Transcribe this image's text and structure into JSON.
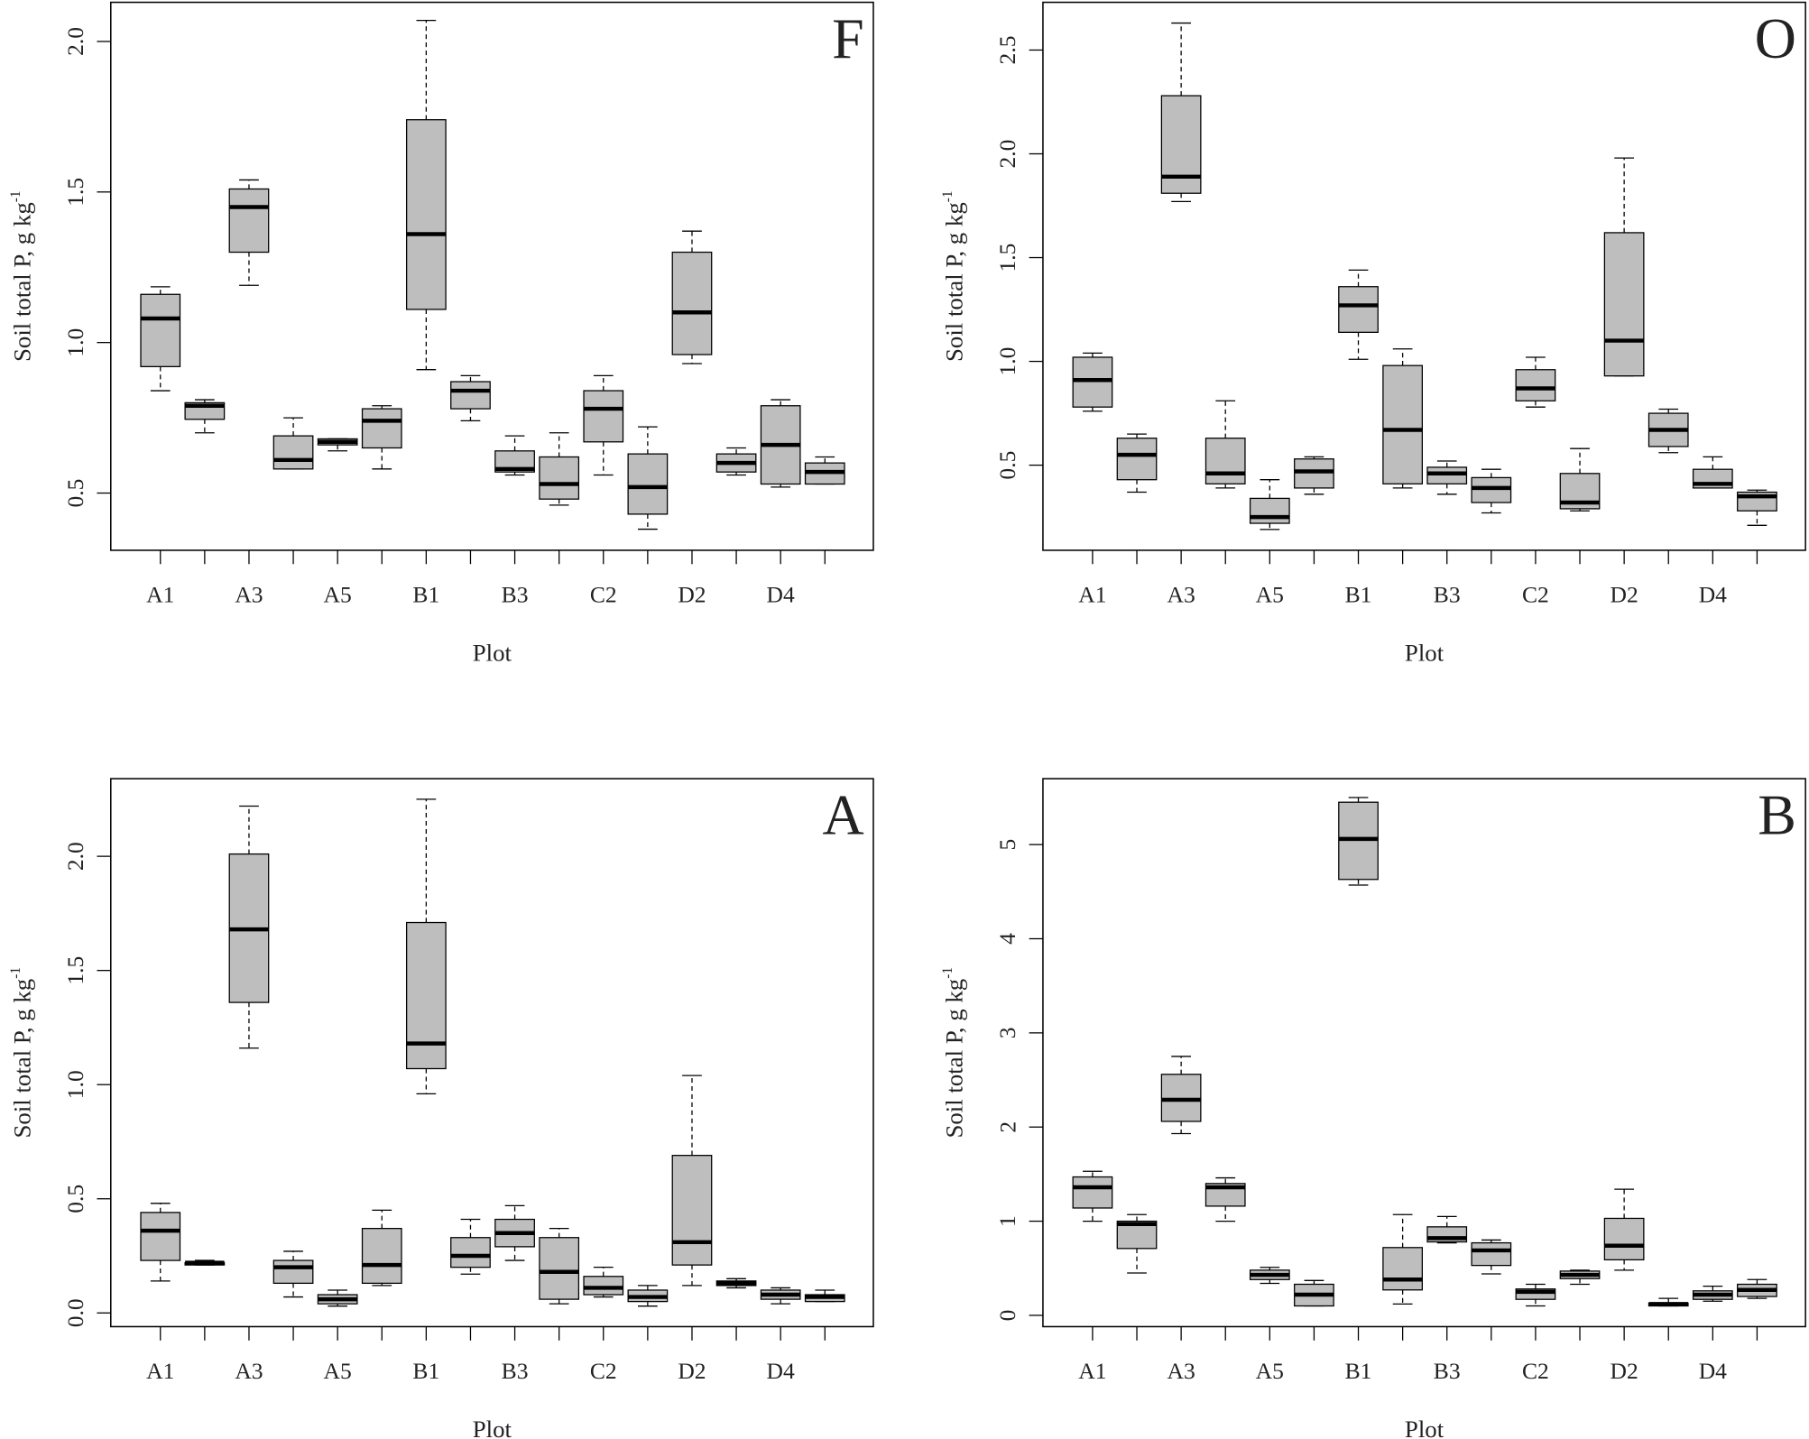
{
  "chart_data": [
    {
      "type": "boxplot",
      "panel_label": "F",
      "xlabel": "Plot",
      "ylabel": "Soil total P, g kg",
      "ylabel_superscript": "-1",
      "color": "#bebebe",
      "categories": [
        "A1",
        null,
        "A3",
        null,
        "A5",
        null,
        "B1",
        null,
        "B3",
        null,
        "C2",
        null,
        "D2",
        null,
        "D4",
        null
      ],
      "whislo": [
        0.84,
        0.7,
        1.19,
        0.58,
        0.64,
        0.58,
        0.91,
        0.74,
        0.56,
        0.46,
        0.56,
        0.38,
        0.93,
        0.56,
        0.52,
        0.53
      ],
      "q1": [
        0.92,
        0.745,
        1.3,
        0.58,
        0.66,
        0.65,
        1.11,
        0.78,
        0.57,
        0.48,
        0.67,
        0.43,
        0.96,
        0.57,
        0.53,
        0.53
      ],
      "median": [
        1.08,
        0.79,
        1.45,
        0.61,
        0.67,
        0.74,
        1.36,
        0.84,
        0.58,
        0.53,
        0.78,
        0.52,
        1.1,
        0.6,
        0.66,
        0.57
      ],
      "q3": [
        1.16,
        0.8,
        1.51,
        0.69,
        0.68,
        0.78,
        1.74,
        0.87,
        0.64,
        0.62,
        0.84,
        0.63,
        1.3,
        0.63,
        0.79,
        0.6
      ],
      "whishi": [
        1.185,
        0.81,
        1.54,
        0.75,
        0.68,
        0.79,
        2.07,
        0.89,
        0.69,
        0.7,
        0.89,
        0.72,
        1.37,
        0.65,
        0.81,
        0.62
      ],
      "ylim": [
        0.31,
        2.13
      ],
      "yticks": [
        0.5,
        {
          "value": 1.0,
          "label": "1.0"
        },
        1.5,
        {
          "value": 2.0,
          "label": "2.0"
        }
      ]
    },
    {
      "type": "boxplot",
      "panel_label": "O",
      "xlabel": "Plot",
      "ylabel": "Soil total P, g kg",
      "ylabel_superscript": "-1",
      "color": "#bebebe",
      "categories": [
        "A1",
        null,
        "A3",
        null,
        "A5",
        null,
        "B1",
        null,
        "B3",
        null,
        "C2",
        null,
        "D2",
        null,
        "D4",
        null
      ],
      "whislo": [
        0.76,
        0.37,
        1.77,
        0.39,
        0.19,
        0.36,
        1.01,
        0.39,
        0.36,
        0.27,
        0.78,
        0.28,
        0.93,
        0.56,
        0.39,
        0.21
      ],
      "q1": [
        0.78,
        0.43,
        1.81,
        0.41,
        0.22,
        0.39,
        1.14,
        0.41,
        0.41,
        0.32,
        0.81,
        0.29,
        0.93,
        0.59,
        0.39,
        0.28
      ],
      "median": [
        0.91,
        0.55,
        1.89,
        0.46,
        0.25,
        0.47,
        1.27,
        0.67,
        0.46,
        0.39,
        0.87,
        0.32,
        1.1,
        0.67,
        0.41,
        0.35
      ],
      "q3": [
        1.02,
        0.63,
        2.28,
        0.63,
        0.34,
        0.53,
        1.36,
        0.98,
        0.49,
        0.44,
        0.96,
        0.46,
        1.62,
        0.75,
        0.48,
        0.37
      ],
      "whishi": [
        1.04,
        0.65,
        2.63,
        0.81,
        0.43,
        0.54,
        1.44,
        1.06,
        0.52,
        0.48,
        1.02,
        0.58,
        1.98,
        0.77,
        0.54,
        0.38
      ],
      "ylim": [
        0.09,
        2.73
      ],
      "yticks": [
        0.5,
        {
          "value": 1.0,
          "label": "1.0"
        },
        1.5,
        {
          "value": 2.0,
          "label": "2.0"
        },
        2.5
      ]
    },
    {
      "type": "boxplot",
      "panel_label": "A",
      "xlabel": "Plot",
      "ylabel": "Soil total P, g kg",
      "ylabel_superscript": "-1",
      "color": "#bebebe",
      "categories": [
        "A1",
        null,
        "A3",
        null,
        "A5",
        null,
        "B1",
        null,
        "B3",
        null,
        "C2",
        null,
        "D2",
        null,
        "D4",
        null
      ],
      "whislo": [
        0.14,
        0.21,
        1.16,
        0.07,
        0.03,
        0.12,
        0.96,
        0.17,
        0.23,
        0.04,
        0.07,
        0.03,
        0.12,
        0.11,
        0.04,
        0.05
      ],
      "q1": [
        0.23,
        0.21,
        1.36,
        0.13,
        0.04,
        0.13,
        1.07,
        0.2,
        0.29,
        0.06,
        0.08,
        0.05,
        0.21,
        0.12,
        0.06,
        0.05
      ],
      "median": [
        0.36,
        0.22,
        1.68,
        0.2,
        0.06,
        0.21,
        1.18,
        0.25,
        0.35,
        0.18,
        0.11,
        0.07,
        0.31,
        0.13,
        0.08,
        0.07
      ],
      "q3": [
        0.44,
        0.22,
        2.01,
        0.23,
        0.08,
        0.37,
        1.71,
        0.33,
        0.41,
        0.33,
        0.16,
        0.1,
        0.69,
        0.14,
        0.1,
        0.08
      ],
      "whishi": [
        0.48,
        0.23,
        2.22,
        0.27,
        0.1,
        0.45,
        2.25,
        0.41,
        0.47,
        0.37,
        0.2,
        0.12,
        1.04,
        0.15,
        0.11,
        0.1
      ],
      "ylim": [
        -0.06,
        2.34
      ],
      "yticks": [
        {
          "value": 0.0,
          "label": "0.0"
        },
        0.5,
        {
          "value": 1.0,
          "label": "1.0"
        },
        1.5,
        {
          "value": 2.0,
          "label": "2.0"
        }
      ]
    },
    {
      "type": "boxplot",
      "panel_label": "B",
      "xlabel": "Plot",
      "ylabel": "Soil total P, g kg",
      "ylabel_superscript": "-1",
      "color": "#bebebe",
      "categories": [
        "A1",
        null,
        "A3",
        null,
        "A5",
        null,
        "B1",
        null,
        "B3",
        null,
        "C2",
        null,
        "D2",
        null,
        "D4",
        null
      ],
      "whislo": [
        1.0,
        0.45,
        1.93,
        1.0,
        0.34,
        0.1,
        4.57,
        0.12,
        0.77,
        0.44,
        0.1,
        0.33,
        0.48,
        0.1,
        0.15,
        0.18
      ],
      "q1": [
        1.14,
        0.71,
        2.06,
        1.16,
        0.38,
        0.1,
        4.63,
        0.27,
        0.78,
        0.53,
        0.17,
        0.39,
        0.59,
        0.1,
        0.17,
        0.2
      ],
      "median": [
        1.36,
        0.97,
        2.29,
        1.36,
        0.43,
        0.22,
        5.06,
        0.38,
        0.82,
        0.69,
        0.25,
        0.43,
        0.74,
        0.12,
        0.22,
        0.27
      ],
      "q3": [
        1.47,
        1.0,
        2.56,
        1.4,
        0.48,
        0.33,
        5.45,
        0.72,
        0.94,
        0.77,
        0.28,
        0.47,
        1.03,
        0.13,
        0.26,
        0.33
      ],
      "whishi": [
        1.53,
        1.07,
        2.75,
        1.46,
        0.51,
        0.37,
        5.5,
        1.07,
        1.05,
        0.8,
        0.33,
        0.48,
        1.34,
        0.18,
        0.31,
        0.38
      ],
      "ylim": [
        -0.12,
        5.7
      ],
      "yticks": [
        0,
        1,
        2,
        3,
        4,
        5
      ]
    }
  ]
}
